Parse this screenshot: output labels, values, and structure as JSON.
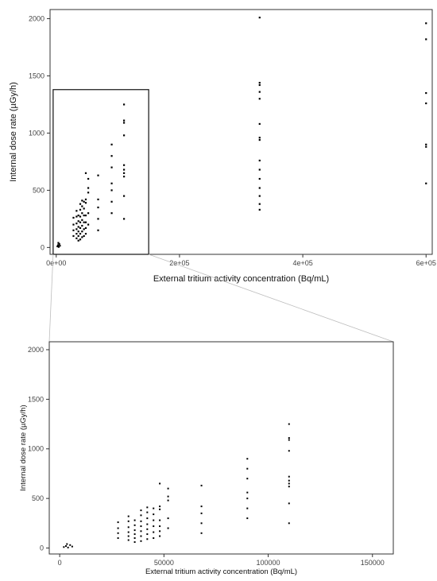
{
  "chart_data": [
    {
      "type": "scatter",
      "panel": "top",
      "xlabel": "External tritium activity concentration  (Bq/mL)",
      "ylabel": "Internal dose rate (µGy/h)",
      "xlim": [
        -10000,
        610000
      ],
      "ylim": [
        -60,
        2080
      ],
      "x_ticks": [
        0,
        200000,
        400000,
        600000
      ],
      "x_tick_labels": [
        "0e+00",
        "2e+05",
        "4e+05",
        "6e+05"
      ],
      "y_ticks": [
        0,
        500,
        1000,
        1500,
        2000
      ],
      "y_tick_labels": [
        "0",
        "500",
        "1000",
        "1500",
        "2000"
      ],
      "zoom_region": {
        "x": [
          -5000,
          150000
        ],
        "y": [
          -60,
          1380
        ]
      },
      "points": [
        [
          2000,
          10
        ],
        [
          3000,
          20
        ],
        [
          4000,
          5
        ],
        [
          5000,
          30
        ],
        [
          6000,
          15
        ],
        [
          3500,
          40
        ],
        [
          28000,
          100
        ],
        [
          28000,
          150
        ],
        [
          28000,
          200
        ],
        [
          28000,
          260
        ],
        [
          33000,
          80
        ],
        [
          33000,
          120
        ],
        [
          33000,
          160
        ],
        [
          33000,
          210
        ],
        [
          33000,
          270
        ],
        [
          33000,
          320
        ],
        [
          36000,
          60
        ],
        [
          36000,
          100
        ],
        [
          36000,
          140
        ],
        [
          36000,
          180
        ],
        [
          36000,
          230
        ],
        [
          36000,
          280
        ],
        [
          39000,
          70
        ],
        [
          39000,
          120
        ],
        [
          39000,
          170
        ],
        [
          39000,
          220
        ],
        [
          39000,
          270
        ],
        [
          39000,
          330
        ],
        [
          39000,
          380
        ],
        [
          42000,
          90
        ],
        [
          42000,
          140
        ],
        [
          42000,
          190
        ],
        [
          42000,
          240
        ],
        [
          42000,
          300
        ],
        [
          42000,
          360
        ],
        [
          42000,
          410
        ],
        [
          45000,
          100
        ],
        [
          45000,
          160
        ],
        [
          45000,
          220
        ],
        [
          45000,
          280
        ],
        [
          45000,
          340
        ],
        [
          45000,
          400
        ],
        [
          48000,
          120
        ],
        [
          48000,
          170
        ],
        [
          48000,
          220
        ],
        [
          48000,
          280
        ],
        [
          48000,
          390
        ],
        [
          48000,
          420
        ],
        [
          48000,
          650
        ],
        [
          52000,
          200
        ],
        [
          52000,
          300
        ],
        [
          52000,
          480
        ],
        [
          52000,
          520
        ],
        [
          52000,
          600
        ],
        [
          68000,
          150
        ],
        [
          68000,
          250
        ],
        [
          68000,
          350
        ],
        [
          68000,
          420
        ],
        [
          68000,
          630
        ],
        [
          90000,
          300
        ],
        [
          90000,
          400
        ],
        [
          90000,
          500
        ],
        [
          90000,
          560
        ],
        [
          90000,
          700
        ],
        [
          90000,
          800
        ],
        [
          90000,
          900
        ],
        [
          110000,
          250
        ],
        [
          110000,
          450
        ],
        [
          110000,
          620
        ],
        [
          110000,
          650
        ],
        [
          110000,
          680
        ],
        [
          110000,
          720
        ],
        [
          110000,
          980
        ],
        [
          110000,
          1090
        ],
        [
          110000,
          1110
        ],
        [
          110000,
          1250
        ],
        [
          330000,
          330
        ],
        [
          330000,
          380
        ],
        [
          330000,
          450
        ],
        [
          330000,
          520
        ],
        [
          330000,
          600
        ],
        [
          330000,
          680
        ],
        [
          330000,
          760
        ],
        [
          330000,
          940
        ],
        [
          330000,
          960
        ],
        [
          330000,
          1080
        ],
        [
          330000,
          1300
        ],
        [
          330000,
          1360
        ],
        [
          330000,
          1420
        ],
        [
          330000,
          1440
        ],
        [
          330000,
          2010
        ],
        [
          600000,
          560
        ],
        [
          600000,
          880
        ],
        [
          600000,
          900
        ],
        [
          600000,
          1260
        ],
        [
          600000,
          1350
        ],
        [
          600000,
          1820
        ],
        [
          600000,
          1960
        ]
      ]
    },
    {
      "type": "scatter",
      "panel": "bottom",
      "xlabel": "External tritium activity concentration  (Bq/mL)",
      "ylabel": "Internal dose rate (µGy/h)",
      "xlim": [
        -5000,
        160000
      ],
      "ylim": [
        -60,
        2080
      ],
      "x_ticks": [
        0,
        50000,
        100000,
        150000
      ],
      "x_tick_labels": [
        "0",
        "50000",
        "100000",
        "150000"
      ],
      "y_ticks": [
        0,
        500,
        1000,
        1500,
        2000
      ],
      "y_tick_labels": [
        "0",
        "500",
        "1000",
        "1500",
        "2000"
      ],
      "points": [
        [
          2000,
          10
        ],
        [
          3000,
          20
        ],
        [
          4000,
          5
        ],
        [
          5000,
          30
        ],
        [
          6000,
          15
        ],
        [
          3500,
          40
        ],
        [
          28000,
          100
        ],
        [
          28000,
          150
        ],
        [
          28000,
          200
        ],
        [
          28000,
          260
        ],
        [
          33000,
          80
        ],
        [
          33000,
          120
        ],
        [
          33000,
          160
        ],
        [
          33000,
          210
        ],
        [
          33000,
          270
        ],
        [
          33000,
          320
        ],
        [
          36000,
          60
        ],
        [
          36000,
          100
        ],
        [
          36000,
          140
        ],
        [
          36000,
          180
        ],
        [
          36000,
          230
        ],
        [
          36000,
          280
        ],
        [
          39000,
          70
        ],
        [
          39000,
          120
        ],
        [
          39000,
          170
        ],
        [
          39000,
          220
        ],
        [
          39000,
          270
        ],
        [
          39000,
          330
        ],
        [
          39000,
          380
        ],
        [
          42000,
          90
        ],
        [
          42000,
          140
        ],
        [
          42000,
          190
        ],
        [
          42000,
          240
        ],
        [
          42000,
          300
        ],
        [
          42000,
          360
        ],
        [
          42000,
          410
        ],
        [
          45000,
          100
        ],
        [
          45000,
          160
        ],
        [
          45000,
          220
        ],
        [
          45000,
          280
        ],
        [
          45000,
          340
        ],
        [
          45000,
          400
        ],
        [
          48000,
          120
        ],
        [
          48000,
          170
        ],
        [
          48000,
          220
        ],
        [
          48000,
          280
        ],
        [
          48000,
          390
        ],
        [
          48000,
          420
        ],
        [
          48000,
          650
        ],
        [
          52000,
          200
        ],
        [
          52000,
          300
        ],
        [
          52000,
          480
        ],
        [
          52000,
          520
        ],
        [
          52000,
          600
        ],
        [
          68000,
          150
        ],
        [
          68000,
          250
        ],
        [
          68000,
          350
        ],
        [
          68000,
          420
        ],
        [
          68000,
          630
        ],
        [
          90000,
          300
        ],
        [
          90000,
          400
        ],
        [
          90000,
          500
        ],
        [
          90000,
          560
        ],
        [
          90000,
          700
        ],
        [
          90000,
          800
        ],
        [
          90000,
          900
        ],
        [
          110000,
          250
        ],
        [
          110000,
          450
        ],
        [
          110000,
          620
        ],
        [
          110000,
          650
        ],
        [
          110000,
          680
        ],
        [
          110000,
          720
        ],
        [
          110000,
          980
        ],
        [
          110000,
          1090
        ],
        [
          110000,
          1110
        ],
        [
          110000,
          1250
        ]
      ]
    }
  ]
}
